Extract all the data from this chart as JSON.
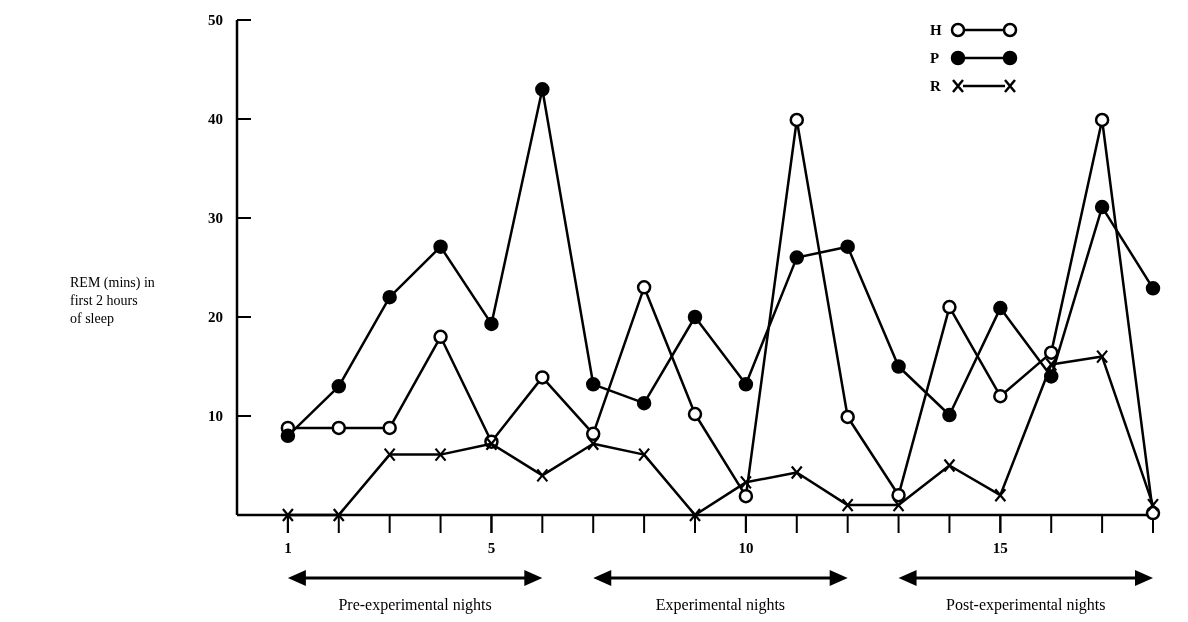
{
  "chart_data": {
    "type": "line",
    "ylabel": "REM (mins) in\nfirst 2 hours\nof sleep",
    "x": [
      1,
      2,
      3,
      4,
      5,
      6,
      7,
      8,
      9,
      10,
      11,
      12,
      13,
      14,
      15,
      16,
      17,
      18
    ],
    "xlim": [
      0,
      18
    ],
    "xticks": [
      1,
      5,
      10,
      15
    ],
    "ylim": [
      0,
      50
    ],
    "yticks": [
      10,
      20,
      30,
      40,
      50
    ],
    "series": [
      {
        "name": "H",
        "color": "#000000",
        "marker": "circle",
        "values": [
          8.8,
          8.8,
          8.8,
          18,
          7.4,
          13.9,
          8.2,
          23,
          10.2,
          1.9,
          39.9,
          9.9,
          2,
          21,
          12,
          16.4,
          39.9,
          0.2
        ]
      },
      {
        "name": "P",
        "color": "#000000",
        "marker": "circle",
        "values": [
          8,
          13,
          22,
          27.1,
          19.3,
          43,
          13.2,
          11.3,
          20,
          13.2,
          26,
          27.1,
          15,
          10.1,
          20.9,
          14,
          31.1,
          22.9
        ]
      },
      {
        "name": "R",
        "color": "#000000",
        "marker": "cross",
        "values": [
          0,
          0,
          6.1,
          6.1,
          7.2,
          4,
          7.2,
          6.1,
          0,
          3.3,
          4.3,
          1,
          1,
          5,
          2,
          15.2,
          16,
          1
        ]
      }
    ],
    "legend": "top right",
    "grid": false,
    "line_style": "solid",
    "annotations": [
      "Pre-experimental nights",
      "Experimental nights",
      "Post-experimental nights"
    ]
  }
}
